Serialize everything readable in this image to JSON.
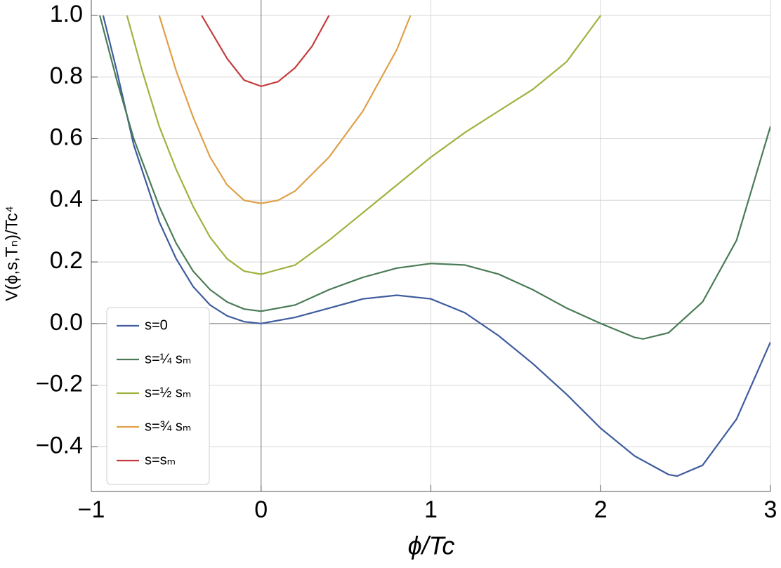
{
  "chart_data": {
    "type": "line",
    "x_label": "ϕ/Tc",
    "y_label": "V(ϕ,s,Tₙ)/Tc⁴",
    "xlim": [
      -1,
      3
    ],
    "ylim": [
      -0.545,
      1.0
    ],
    "xticks": [
      {
        "value": -1,
        "label": "−1"
      },
      0,
      1,
      2,
      3
    ],
    "yticks": [
      {
        "value": -0.4,
        "label": "−0.4"
      },
      {
        "value": -0.2,
        "label": "−0.2"
      },
      {
        "value": 0,
        "label": "0.0"
      },
      0.2,
      0.4,
      0.6,
      0.8,
      {
        "value": 1,
        "label": "1.0"
      }
    ],
    "grid": true,
    "legend": "lower-left",
    "series": [
      {
        "name": "s=0",
        "color": "#3e5c9e",
        "x": [
          -0.93,
          -0.85,
          -0.75,
          -0.6,
          -0.5,
          -0.4,
          -0.3,
          -0.2,
          -0.1,
          0,
          0.2,
          0.4,
          0.6,
          0.8,
          1.0,
          1.2,
          1.4,
          1.6,
          1.8,
          2.0,
          2.2,
          2.4,
          2.45,
          2.6,
          2.8,
          3.0
        ],
        "values": [
          1.0,
          0.82,
          0.58,
          0.33,
          0.21,
          0.12,
          0.06,
          0.025,
          0.006,
          0,
          0.02,
          0.05,
          0.08,
          0.092,
          0.08,
          0.035,
          -0.04,
          -0.13,
          -0.23,
          -0.34,
          -0.43,
          -0.49,
          -0.495,
          -0.46,
          -0.31,
          -0.06
        ]
      },
      {
        "name": "s=¼ sₘ",
        "color": "#4a7b56",
        "x": [
          -0.95,
          -0.85,
          -0.75,
          -0.6,
          -0.5,
          -0.4,
          -0.3,
          -0.2,
          -0.1,
          0,
          0.2,
          0.4,
          0.6,
          0.8,
          1.0,
          1.2,
          1.4,
          1.6,
          1.8,
          2.0,
          2.2,
          2.25,
          2.4,
          2.6,
          2.8,
          3.0
        ],
        "values": [
          1.0,
          0.79,
          0.6,
          0.38,
          0.26,
          0.17,
          0.11,
          0.07,
          0.047,
          0.04,
          0.06,
          0.11,
          0.15,
          0.18,
          0.195,
          0.19,
          0.16,
          0.11,
          0.05,
          0.0,
          -0.045,
          -0.05,
          -0.03,
          0.07,
          0.27,
          0.64
        ]
      },
      {
        "name": "s=½ sₘ",
        "color": "#9fb23e",
        "x": [
          -0.79,
          -0.7,
          -0.6,
          -0.5,
          -0.4,
          -0.3,
          -0.2,
          -0.1,
          0,
          0.2,
          0.4,
          0.6,
          0.8,
          1.0,
          1.2,
          1.4,
          1.6,
          1.8,
          2.0
        ],
        "values": [
          1.0,
          0.82,
          0.64,
          0.5,
          0.38,
          0.28,
          0.21,
          0.17,
          0.16,
          0.19,
          0.27,
          0.36,
          0.45,
          0.54,
          0.62,
          0.69,
          0.76,
          0.85,
          1.0
        ]
      },
      {
        "name": "s=¾ sₘ",
        "color": "#e0a04a",
        "x": [
          -0.6,
          -0.5,
          -0.4,
          -0.3,
          -0.2,
          -0.1,
          0,
          0.1,
          0.2,
          0.4,
          0.6,
          0.8,
          0.88
        ],
        "values": [
          1.0,
          0.82,
          0.67,
          0.54,
          0.45,
          0.4,
          0.39,
          0.4,
          0.43,
          0.54,
          0.69,
          0.89,
          1.0
        ]
      },
      {
        "name": "s=sₘ",
        "color": "#c43b3d",
        "x": [
          -0.35,
          -0.2,
          -0.1,
          0,
          0.1,
          0.2,
          0.3,
          0.4
        ],
        "values": [
          1.0,
          0.86,
          0.79,
          0.77,
          0.785,
          0.83,
          0.9,
          1.0
        ]
      }
    ]
  }
}
